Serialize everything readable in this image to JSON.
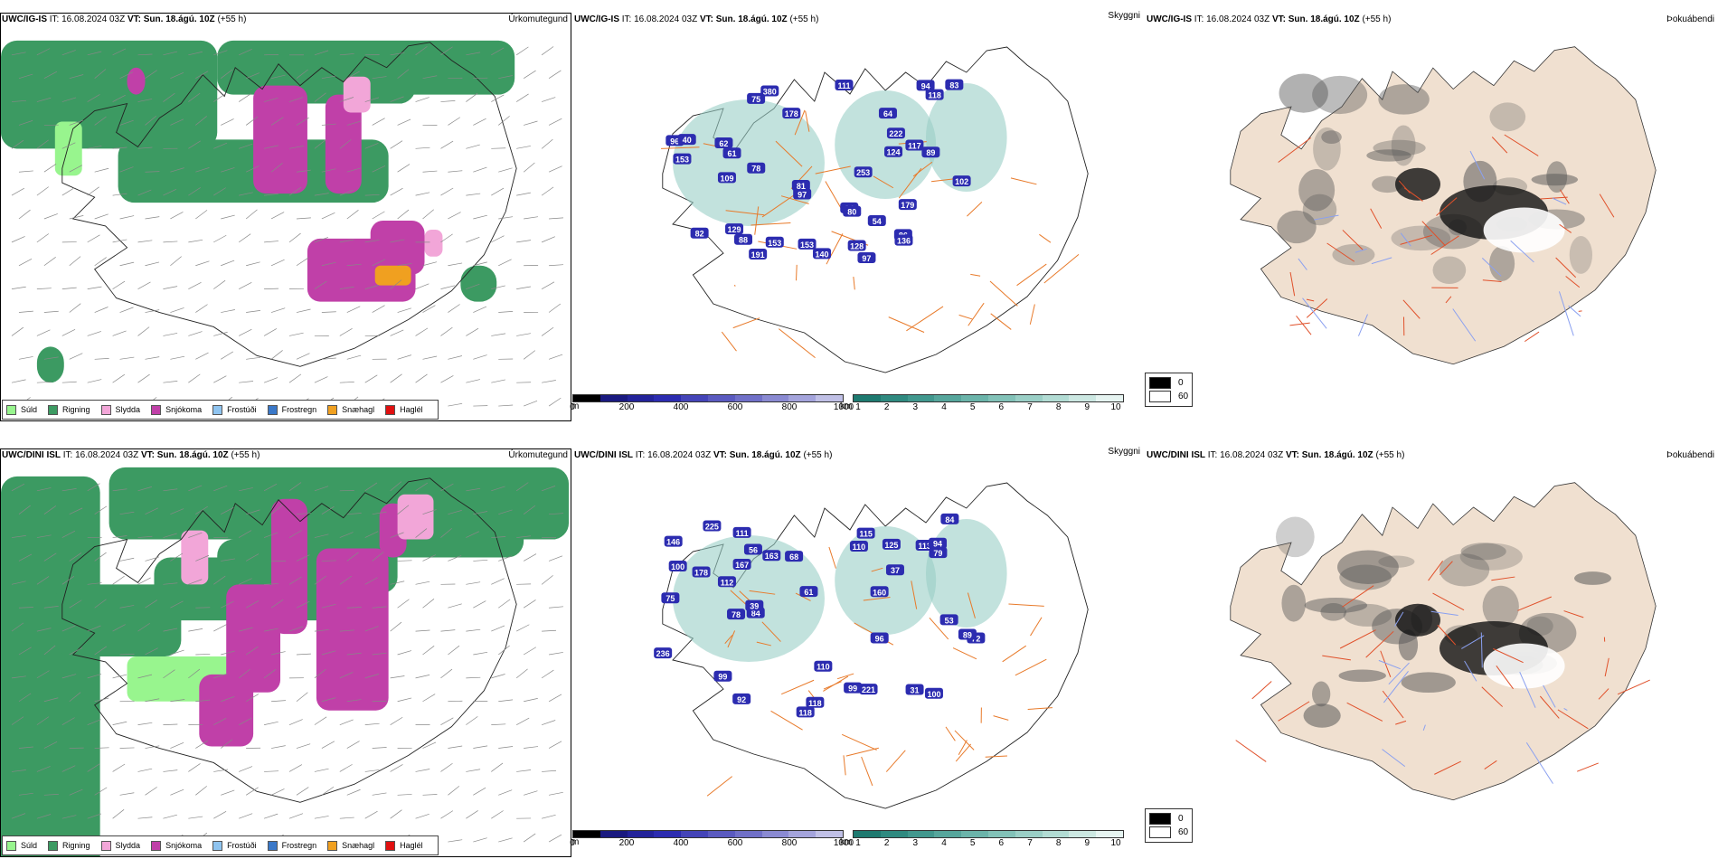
{
  "rows": [
    {
      "model": "UWC/IG-IS",
      "it_label": "IT:",
      "it_value": "16.08.2024 03Z",
      "vt_label": "VT:",
      "vt_value": "Sun. 18.ágú. 10Z",
      "lead": "(+55 h)"
    },
    {
      "model": "UWC/DINI ISL",
      "it_label": "IT:",
      "it_value": "16.08.2024 03Z",
      "vt_label": "VT:",
      "vt_value": "Sun. 18.ágú. 10Z",
      "lead": "(+55 h)"
    }
  ],
  "panel_titles": {
    "precip_type": "Úrkomutegund",
    "visibility": "Skyggni",
    "fog": "Þokuábendi"
  },
  "precip_legend": [
    {
      "label": "Súld",
      "color": "#98f58e"
    },
    {
      "label": "Rigning",
      "color": "#3c9a62"
    },
    {
      "label": "Slydda",
      "color": "#f2a6d8"
    },
    {
      "label": "Snjókoma",
      "color": "#c040a8"
    },
    {
      "label": "Frostúði",
      "color": "#8fc4f0"
    },
    {
      "label": "Frostregn",
      "color": "#3a78c8"
    },
    {
      "label": "Snæhagl",
      "color": "#f0a020"
    },
    {
      "label": "Haglél",
      "color": "#e01010"
    }
  ],
  "ceiling_bar": {
    "unit": "m",
    "ticks": [
      "0",
      "200",
      "400",
      "600",
      "800",
      "1000"
    ],
    "colors": [
      "#000000",
      "#1a1a80",
      "#23239a",
      "#2c2cb0",
      "#4444b8",
      "#5a5ac0",
      "#7070c8",
      "#8a8ad2",
      "#a4a4dc",
      "#c0c0e6"
    ]
  },
  "vis_bar": {
    "unit": "km",
    "ticks": [
      "1",
      "2",
      "3",
      "4",
      "5",
      "6",
      "7",
      "8",
      "9",
      "10"
    ],
    "colors": [
      "#1e7a70",
      "#2f8a80",
      "#41988e",
      "#56a69c",
      "#6bb4aa",
      "#82c2b8",
      "#9acfc6",
      "#b2dcd4",
      "#cce8e2",
      "#e6f4f1"
    ]
  },
  "fog_legend": [
    {
      "label": "0",
      "color": "#000000"
    },
    {
      "label": "60",
      "color": "#ffffff"
    }
  ],
  "visibility_labels_top": [
    "97",
    "75",
    "129",
    "62",
    "117",
    "128",
    "102",
    "78",
    "97",
    "88",
    "82",
    "96",
    "81",
    "94",
    "124",
    "94",
    "153",
    "118",
    "179",
    "89",
    "86",
    "80",
    "191",
    "136",
    "253",
    "222",
    "109",
    "61",
    "140",
    "178",
    "54",
    "83",
    "64",
    "153",
    "380",
    "153",
    "111",
    "40"
  ],
  "visibility_labels_bottom": [
    "100",
    "167",
    "160",
    "118",
    "113",
    "118",
    "96",
    "84",
    "94",
    "72",
    "89",
    "56",
    "37",
    "99",
    "75",
    "92",
    "39",
    "68",
    "100",
    "99",
    "31",
    "53",
    "61",
    "110",
    "125",
    "112",
    "79",
    "115",
    "225",
    "78",
    "236",
    "221",
    "84",
    "178",
    "146",
    "111",
    "163",
    "110"
  ],
  "colors": {
    "rain": "#3c9a62",
    "snow": "#c040a8",
    "sleet": "#f2a6d8",
    "drizzle": "#98f58e",
    "hail": "#f0a020",
    "land": "#f0e0d0",
    "roads": "#e87a2a",
    "rivers": "#8aa0f0"
  }
}
